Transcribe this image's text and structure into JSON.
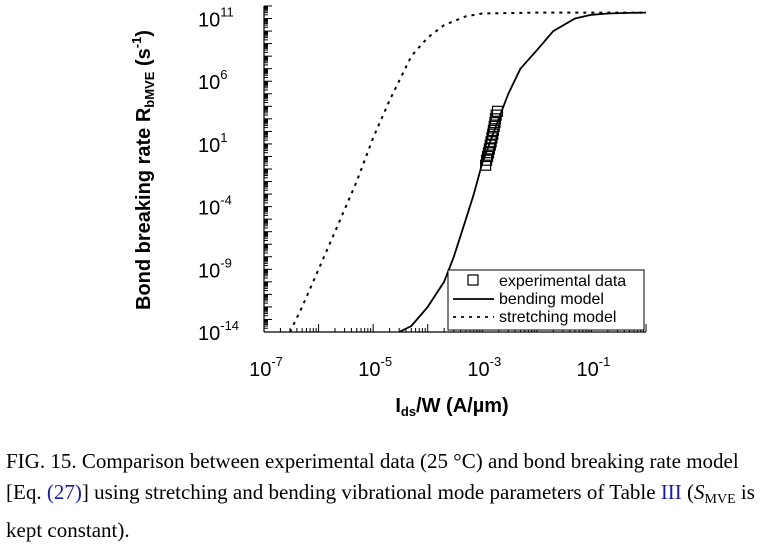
{
  "chart_data": {
    "type": "line",
    "ylabel_main": "Bond breaking rate R",
    "ylabel_sub": "bMVE",
    "ylabel_unit": " (s",
    "ylabel_unit_exp": "-1",
    "ylabel_close": ")",
    "xlabel_main": "I",
    "xlabel_sub": "ds",
    "xlabel_unit": "/W (A/µm)",
    "x_scale": "log",
    "y_scale": "log",
    "xlim": [
      1e-07,
      1
    ],
    "ylim": [
      1e-14,
      1000000000000.0
    ],
    "x_ticks": [
      {
        "base": "10",
        "exp": "-7",
        "value": 1e-07
      },
      {
        "base": "10",
        "exp": "-5",
        "value": 1e-05
      },
      {
        "base": "10",
        "exp": "-3",
        "value": 0.001
      },
      {
        "base": "10",
        "exp": "-1",
        "value": 0.1
      }
    ],
    "y_ticks": [
      {
        "base": "10",
        "exp": "11",
        "value": 100000000000.0
      },
      {
        "base": "10",
        "exp": "6",
        "value": 1000000.0
      },
      {
        "base": "10",
        "exp": "1",
        "value": 10.0
      },
      {
        "base": "10",
        "exp": "-4",
        "value": 0.0001
      },
      {
        "base": "10",
        "exp": "-9",
        "value": 1e-09
      },
      {
        "base": "10",
        "exp": "-14",
        "value": 1e-14
      }
    ],
    "legend_position": "bottom-right",
    "series": [
      {
        "name": "experimental data",
        "style": "open-square",
        "x": [
          0.00115,
          0.0012,
          0.00125,
          0.0013,
          0.00135,
          0.0014,
          0.00145,
          0.0015,
          0.00155,
          0.0016,
          0.00165,
          0.0017,
          0.00175,
          0.0018,
          0.0019
        ],
        "y": [
          0.2,
          0.5,
          1.0,
          2.0,
          4.0,
          8.0,
          15.0,
          30.0,
          60.0,
          120.0,
          250.0,
          500.0,
          1000.0,
          2000.0,
          4000.0
        ]
      },
      {
        "name": "bending model",
        "style": "solid",
        "x": [
          3e-05,
          5e-05,
          0.0001,
          0.0002,
          0.0003,
          0.0005,
          0.0007,
          0.001,
          0.002,
          0.003,
          0.005,
          0.01,
          0.02,
          0.05,
          0.1,
          0.2,
          0.5,
          1
        ],
        "y": [
          1e-14,
          3e-14,
          1e-12,
          1e-10,
          1e-08,
          1e-05,
          0.001,
          0.3,
          1000.0,
          100000.0,
          10000000.0,
          300000000.0,
          10000000000.0,
          100000000000.0,
          200000000000.0,
          250000000000.0,
          280000000000.0,
          300000000000.0
        ]
      },
      {
        "name": "stretching model",
        "style": "dashed",
        "x": [
          3e-07,
          5e-07,
          1e-06,
          2e-06,
          5e-06,
          1e-05,
          2e-05,
          5e-05,
          0.0001,
          0.0002,
          0.0005,
          0.001,
          0.01,
          0.1,
          1
        ],
        "y": [
          1e-14,
          1e-12,
          1e-09,
          1e-06,
          0.01,
          30.0,
          30000.0,
          100000000.0,
          3000000000.0,
          30000000000.0,
          150000000000.0,
          250000000000.0,
          300000000000.0,
          300000000000.0,
          300000000000.0
        ]
      }
    ]
  },
  "caption": {
    "prefix": "FIG. 15. Comparison between experimental data (25 °C) and bond breaking rate model [Eq. ",
    "eq_link": "(27)",
    "middle": "] using stretching and bending vibrational mode parameters of Table ",
    "table_link": "III",
    "paren_open": " (",
    "s_symbol": "S",
    "s_sub": "MVE",
    "suffix": " is kept constant)."
  }
}
